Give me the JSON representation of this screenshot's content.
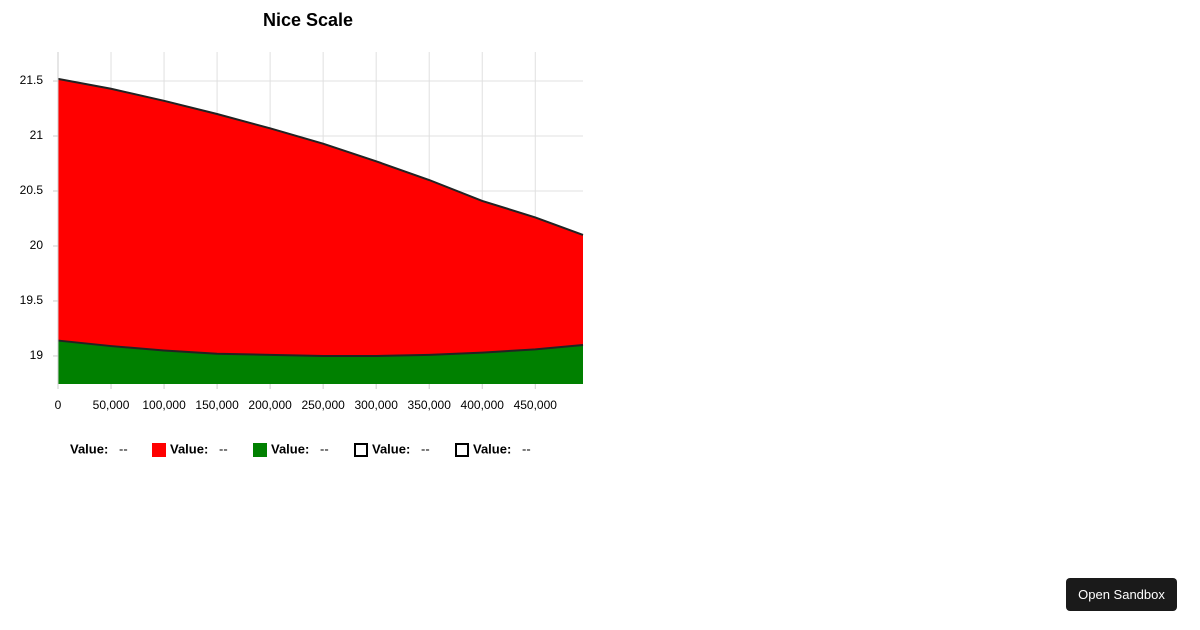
{
  "chart_data": {
    "type": "area",
    "title": "Nice Scale",
    "x_name": "Value:",
    "x_legend_value": "--",
    "x": [
      0,
      50000,
      100000,
      150000,
      200000,
      250000,
      300000,
      350000,
      400000,
      450000,
      495000
    ],
    "xlim": [
      0,
      495000
    ],
    "xticks": [
      0,
      {
        "value": 50000,
        "label": "50,000"
      },
      {
        "value": 100000,
        "label": "100,000"
      },
      {
        "value": 150000,
        "label": "150,000"
      },
      {
        "value": 200000,
        "label": "200,000"
      },
      {
        "value": 250000,
        "label": "250,000"
      },
      {
        "value": 300000,
        "label": "300,000"
      },
      {
        "value": 350000,
        "label": "350,000"
      },
      {
        "value": 400000,
        "label": "400,000"
      },
      {
        "value": 450000,
        "label": "450,000"
      }
    ],
    "ylim": [
      18.745,
      21.764
    ],
    "yticks": [
      19,
      19.5,
      20,
      20.5,
      21,
      21.5
    ],
    "grid": true,
    "series": [
      {
        "name": "Value:",
        "legend_value": "--",
        "color": "#ff0000",
        "stroke": "#222222",
        "values": [
          21.52,
          21.43,
          21.32,
          21.2,
          21.07,
          20.93,
          20.77,
          20.6,
          20.41,
          20.26,
          20.1
        ]
      },
      {
        "name": "Value:",
        "legend_value": "--",
        "color": "#008000",
        "stroke": "#222222",
        "values": [
          19.14,
          19.09,
          19.05,
          19.02,
          19.01,
          19.0,
          19.0,
          19.01,
          19.03,
          19.06,
          19.1
        ]
      },
      {
        "name": "Value:",
        "legend_value": "--",
        "color": "#ffffff"
      },
      {
        "name": "Value:",
        "legend_value": "--",
        "color": "#ffffff"
      }
    ]
  },
  "ui": {
    "button": "Open Sandbox"
  }
}
